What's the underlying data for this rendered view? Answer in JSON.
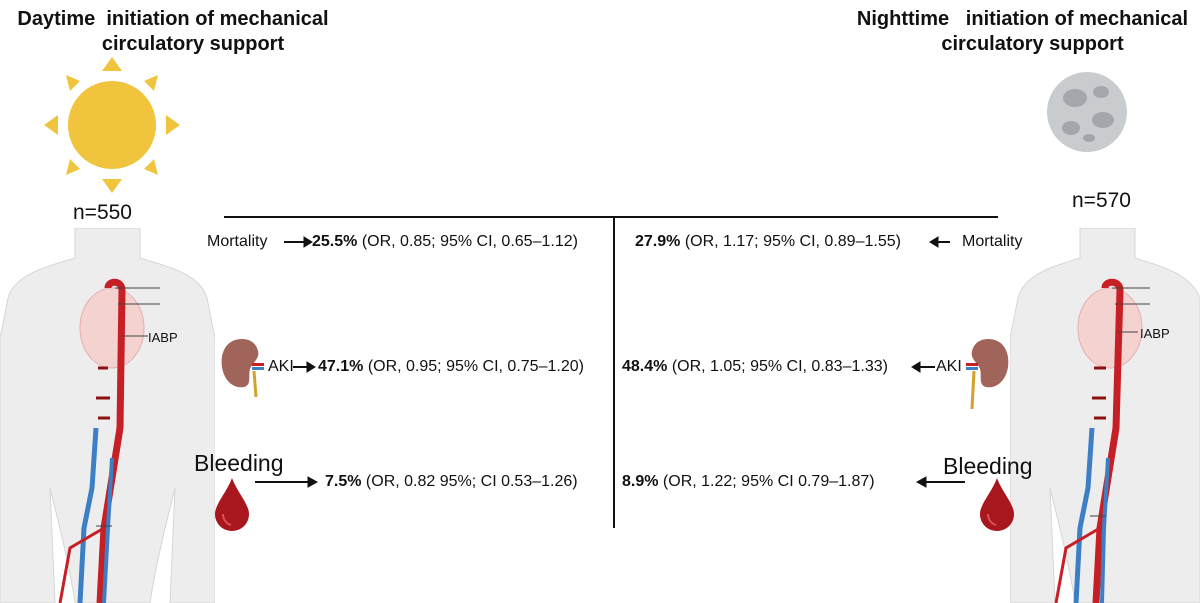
{
  "left": {
    "title_line1": "Daytime  initiation of mechanical",
    "title_line2": "circulatory support",
    "n": "n=550",
    "icon": "sun-icon",
    "device_label": "IABP",
    "mortality": {
      "label": "Mortality",
      "pct": "25.5%",
      "detail": " (OR, 0.85; 95% CI, 0.65–1.12)"
    },
    "aki": {
      "label": "AKI",
      "pct": "47.1%",
      "detail": " (OR, 0.95; 95% CI, 0.75–1.20)"
    },
    "bleeding": {
      "label": "Bleeding",
      "pct": "7.5%",
      "detail": " (OR, 0.82 95%; CI 0.53–1.26)"
    }
  },
  "right": {
    "title_line1": "Nighttime   initiation of mechanical",
    "title_line2": "circulatory support",
    "n": "n=570",
    "icon": "moon-icon",
    "device_label": "IABP",
    "mortality": {
      "label": "Mortality",
      "pct": "27.9%",
      "detail": " (OR, 1.17; 95% CI, 0.89–1.55)"
    },
    "aki": {
      "label": "AKI",
      "pct": "48.4%",
      "detail": " (OR, 1.05; 95% CI, 0.83–1.33)"
    },
    "bleeding": {
      "label": "Bleeding",
      "pct": "8.9%",
      "detail": " (OR, 1.22; 95% CI 0.79–1.87)"
    }
  },
  "colors": {
    "sun": "#F0C43C",
    "moon": "#C9CCCF",
    "blood": "#A8161E",
    "kidney": "#A0645A",
    "body": "#EDEDED",
    "artery": "#C62026",
    "vein": "#3C7FC4"
  }
}
